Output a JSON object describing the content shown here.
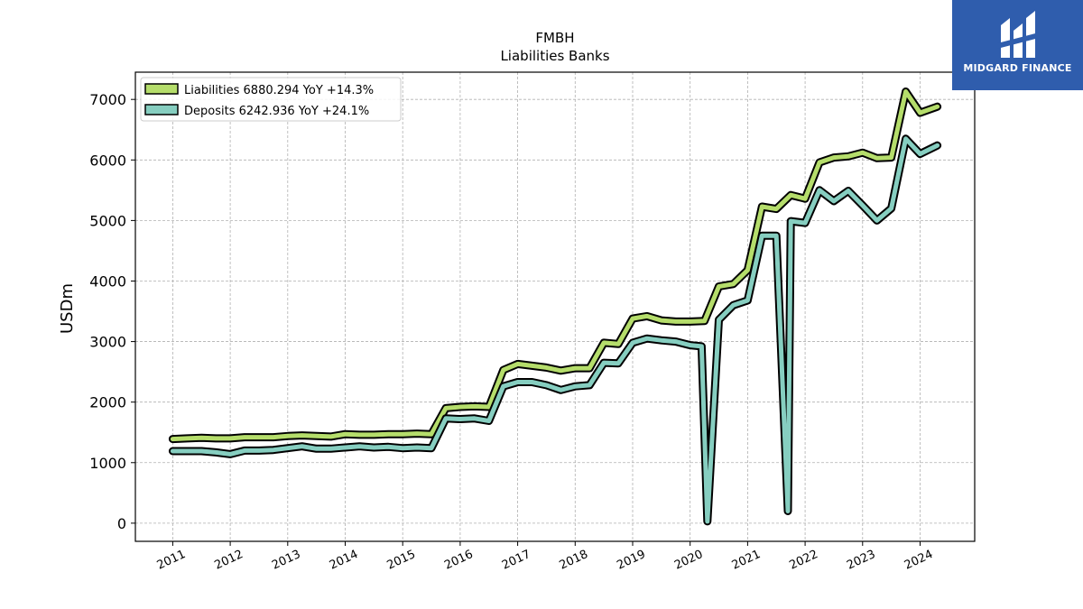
{
  "brand": {
    "name": "MIDGARD FINANCE",
    "background": "#2f5dad",
    "icon": "midgard-logo-icon"
  },
  "chart_data": {
    "type": "line",
    "title": "FMBH",
    "subtitle": "Liabilities Banks",
    "xlabel": "",
    "ylabel": "USDm",
    "ylim": [
      -300,
      7450
    ],
    "xlim": [
      2010.35,
      2024.95
    ],
    "yticks": [
      0,
      1000,
      2000,
      3000,
      4000,
      5000,
      6000,
      7000
    ],
    "xticks": [
      "2011",
      "2012",
      "2013",
      "2014",
      "2015",
      "2016",
      "2017",
      "2018",
      "2019",
      "2020",
      "2021",
      "2022",
      "2023",
      "2024"
    ],
    "grid": true,
    "legend_position": "top-left",
    "series": [
      {
        "name": "Liabilities",
        "legend_label": "Liabilities  6880.294 YoY +14.3%",
        "color": "#b5dd6b",
        "points": [
          [
            2011.0,
            1390
          ],
          [
            2011.25,
            1400
          ],
          [
            2011.5,
            1410
          ],
          [
            2011.75,
            1400
          ],
          [
            2012.0,
            1400
          ],
          [
            2012.25,
            1420
          ],
          [
            2012.5,
            1420
          ],
          [
            2012.75,
            1420
          ],
          [
            2013.0,
            1440
          ],
          [
            2013.25,
            1450
          ],
          [
            2013.5,
            1440
          ],
          [
            2013.75,
            1430
          ],
          [
            2014.0,
            1470
          ],
          [
            2014.25,
            1460
          ],
          [
            2014.5,
            1460
          ],
          [
            2014.75,
            1470
          ],
          [
            2015.0,
            1470
          ],
          [
            2015.25,
            1480
          ],
          [
            2015.5,
            1470
          ],
          [
            2015.75,
            1900
          ],
          [
            2016.0,
            1920
          ],
          [
            2016.25,
            1930
          ],
          [
            2016.5,
            1920
          ],
          [
            2016.75,
            2530
          ],
          [
            2017.0,
            2630
          ],
          [
            2017.25,
            2600
          ],
          [
            2017.5,
            2570
          ],
          [
            2017.75,
            2520
          ],
          [
            2018.0,
            2560
          ],
          [
            2018.25,
            2560
          ],
          [
            2018.5,
            2980
          ],
          [
            2018.75,
            2960
          ],
          [
            2019.0,
            3380
          ],
          [
            2019.25,
            3420
          ],
          [
            2019.5,
            3350
          ],
          [
            2019.75,
            3330
          ],
          [
            2020.0,
            3330
          ],
          [
            2020.25,
            3340
          ],
          [
            2020.5,
            3910
          ],
          [
            2020.75,
            3950
          ],
          [
            2021.0,
            4180
          ],
          [
            2021.25,
            5230
          ],
          [
            2021.5,
            5190
          ],
          [
            2021.75,
            5420
          ],
          [
            2022.0,
            5360
          ],
          [
            2022.25,
            5960
          ],
          [
            2022.5,
            6040
          ],
          [
            2022.75,
            6060
          ],
          [
            2023.0,
            6120
          ],
          [
            2023.25,
            6030
          ],
          [
            2023.5,
            6040
          ],
          [
            2023.75,
            7130
          ],
          [
            2024.0,
            6780
          ],
          [
            2024.3,
            6880
          ]
        ]
      },
      {
        "name": "Deposits",
        "legend_label": "Deposits  6242.936 YoY +24.1%",
        "color": "#86cec0",
        "points": [
          [
            2011.0,
            1190
          ],
          [
            2011.25,
            1190
          ],
          [
            2011.5,
            1190
          ],
          [
            2011.75,
            1170
          ],
          [
            2012.0,
            1140
          ],
          [
            2012.25,
            1200
          ],
          [
            2012.5,
            1200
          ],
          [
            2012.75,
            1210
          ],
          [
            2013.0,
            1240
          ],
          [
            2013.25,
            1270
          ],
          [
            2013.5,
            1230
          ],
          [
            2013.75,
            1230
          ],
          [
            2014.0,
            1250
          ],
          [
            2014.25,
            1270
          ],
          [
            2014.5,
            1250
          ],
          [
            2014.75,
            1260
          ],
          [
            2015.0,
            1240
          ],
          [
            2015.25,
            1250
          ],
          [
            2015.5,
            1240
          ],
          [
            2015.75,
            1730
          ],
          [
            2016.0,
            1720
          ],
          [
            2016.25,
            1730
          ],
          [
            2016.5,
            1690
          ],
          [
            2016.75,
            2260
          ],
          [
            2017.0,
            2330
          ],
          [
            2017.25,
            2330
          ],
          [
            2017.5,
            2280
          ],
          [
            2017.75,
            2200
          ],
          [
            2018.0,
            2260
          ],
          [
            2018.25,
            2280
          ],
          [
            2018.5,
            2650
          ],
          [
            2018.75,
            2640
          ],
          [
            2019.0,
            2980
          ],
          [
            2019.25,
            3050
          ],
          [
            2019.5,
            3020
          ],
          [
            2019.75,
            3000
          ],
          [
            2020.0,
            2940
          ],
          [
            2020.2,
            2920
          ],
          [
            2020.3,
            30
          ],
          [
            2020.5,
            3360
          ],
          [
            2020.75,
            3600
          ],
          [
            2021.0,
            3680
          ],
          [
            2021.25,
            4750
          ],
          [
            2021.5,
            4750
          ],
          [
            2021.7,
            200
          ],
          [
            2021.75,
            4990
          ],
          [
            2022.0,
            4960
          ],
          [
            2022.25,
            5500
          ],
          [
            2022.5,
            5320
          ],
          [
            2022.75,
            5490
          ],
          [
            2023.0,
            5250
          ],
          [
            2023.25,
            5000
          ],
          [
            2023.5,
            5200
          ],
          [
            2023.75,
            6350
          ],
          [
            2024.0,
            6100
          ],
          [
            2024.3,
            6240
          ]
        ]
      }
    ]
  }
}
